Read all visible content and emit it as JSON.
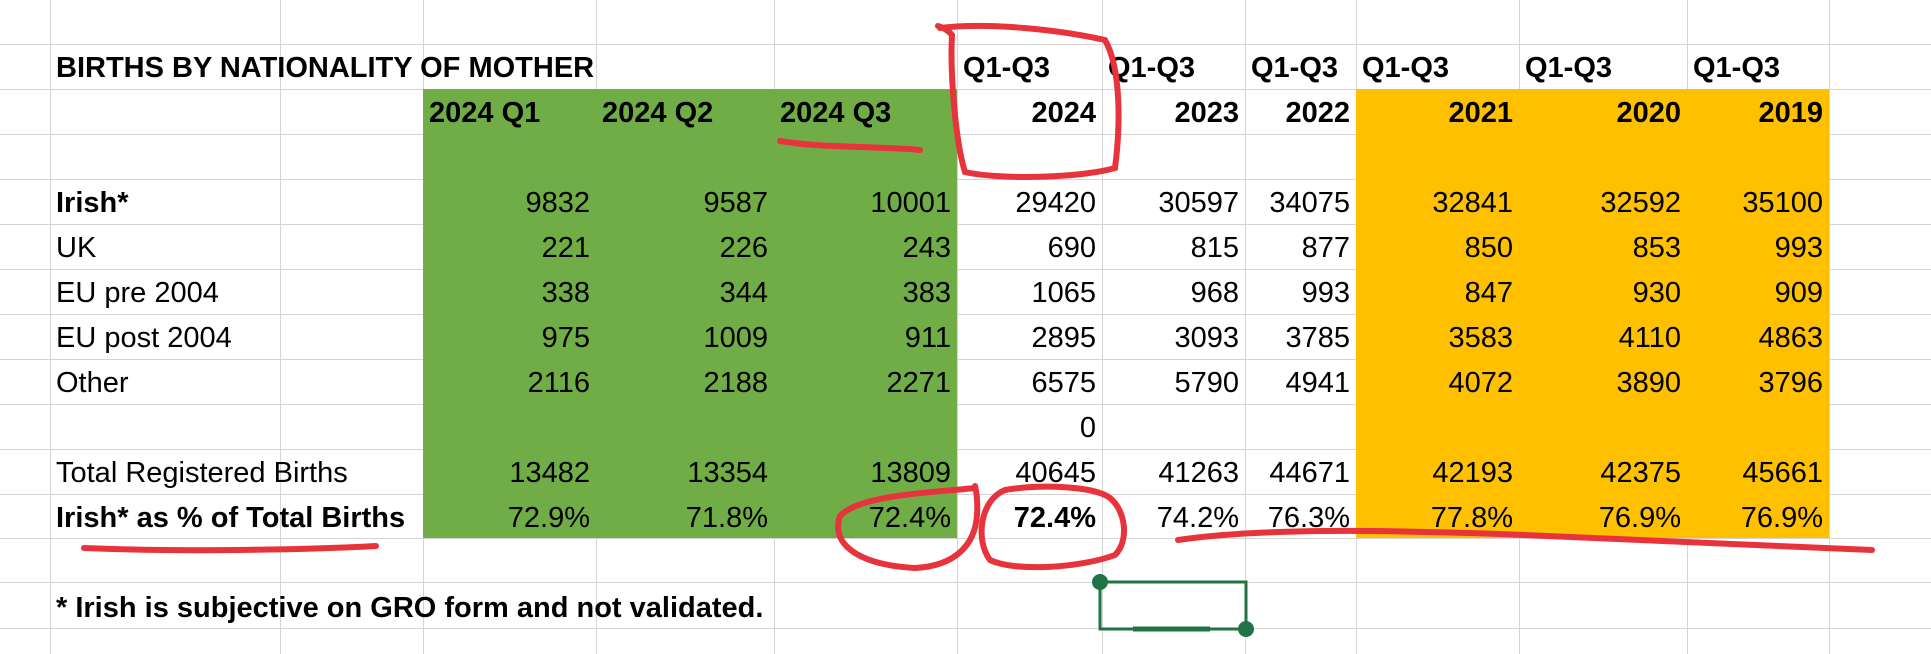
{
  "title": "BIRTHS BY NATIONALITY OF MOTHER",
  "header_row1": [
    "",
    "",
    "",
    "Q1-Q3",
    "Q1-Q3",
    "Q1-Q3",
    "Q1-Q3",
    "Q1-Q3",
    "Q1-Q3"
  ],
  "header_row2": [
    "2024 Q1",
    "2024 Q2",
    "2024 Q3",
    "2024",
    "2023",
    "2022",
    "2021",
    "2020",
    "2019"
  ],
  "rows": [
    {
      "label": "Irish*",
      "values": [
        "9832",
        "9587",
        "10001",
        "29420",
        "30597",
        "34075",
        "32841",
        "32592",
        "35100"
      ]
    },
    {
      "label": "UK",
      "values": [
        "221",
        "226",
        "243",
        "690",
        "815",
        "877",
        "850",
        "853",
        "993"
      ]
    },
    {
      "label": "EU pre 2004",
      "values": [
        "338",
        "344",
        "383",
        "1065",
        "968",
        "993",
        "847",
        "930",
        "909"
      ]
    },
    {
      "label": "EU post 2004",
      "values": [
        "975",
        "1009",
        "911",
        "2895",
        "3093",
        "3785",
        "3583",
        "4110",
        "4863"
      ]
    },
    {
      "label": "Other",
      "values": [
        "2116",
        "2188",
        "2271",
        "6575",
        "5790",
        "4941",
        "4072",
        "3890",
        "3796"
      ]
    },
    {
      "label": "",
      "values": [
        "",
        "",
        "",
        "0",
        "",
        "",
        "",
        "",
        ""
      ]
    },
    {
      "label": "Total Registered Births",
      "values": [
        "13482",
        "13354",
        "13809",
        "40645",
        "41263",
        "44671",
        "42193",
        "42375",
        "45661"
      ]
    },
    {
      "label": "Irish*  as % of Total Births",
      "values": [
        "72.9%",
        "71.8%",
        "72.4%",
        "72.4%",
        "74.2%",
        "76.3%",
        "77.8%",
        "76.9%",
        "76.9%"
      ]
    }
  ],
  "footnote": "* Irish is subjective on GRO form and not validated.",
  "colors": {
    "green_fill": "#70ad47",
    "orange_fill": "#ffc000",
    "annotation_red": "#e8323c",
    "selection_green": "#217346",
    "gridline": "#d4d4d4"
  }
}
